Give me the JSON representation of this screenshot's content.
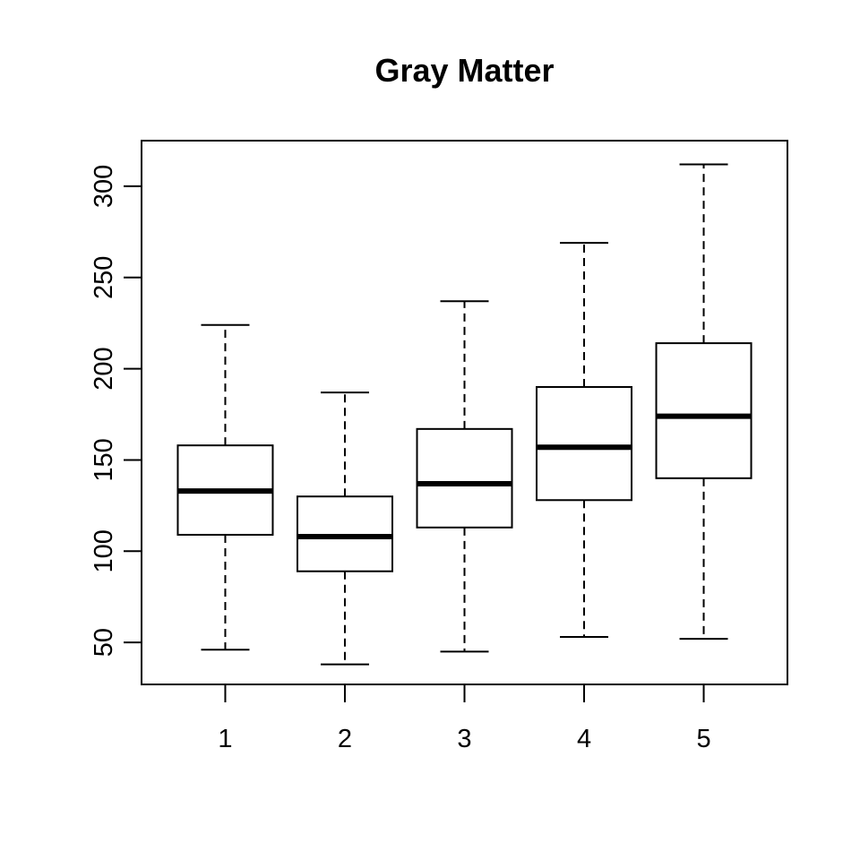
{
  "chart_data": {
    "type": "box",
    "title": "Gray Matter",
    "xlabel": "",
    "ylabel": "",
    "categories": [
      "1",
      "2",
      "3",
      "4",
      "5"
    ],
    "ylim": [
      27,
      325
    ],
    "yticks": [
      50,
      100,
      150,
      200,
      250,
      300
    ],
    "ytick_labels": [
      "50",
      "100",
      "150",
      "200",
      "250",
      "300"
    ],
    "boxes": [
      {
        "category": "1",
        "min": 46,
        "q1": 109,
        "median": 133,
        "q3": 158,
        "max": 224
      },
      {
        "category": "2",
        "min": 38,
        "q1": 89,
        "median": 108,
        "q3": 130,
        "max": 187
      },
      {
        "category": "3",
        "min": 45,
        "q1": 113,
        "median": 137,
        "q3": 167,
        "max": 237
      },
      {
        "category": "4",
        "min": 53,
        "q1": 128,
        "median": 157,
        "q3": 190,
        "max": 269
      },
      {
        "category": "5",
        "min": 52,
        "q1": 140,
        "median": 174,
        "q3": 214,
        "max": 312
      }
    ],
    "grid": false,
    "legend": "none",
    "colors": {
      "line": "#000000",
      "box_fill": "#ffffff"
    }
  }
}
